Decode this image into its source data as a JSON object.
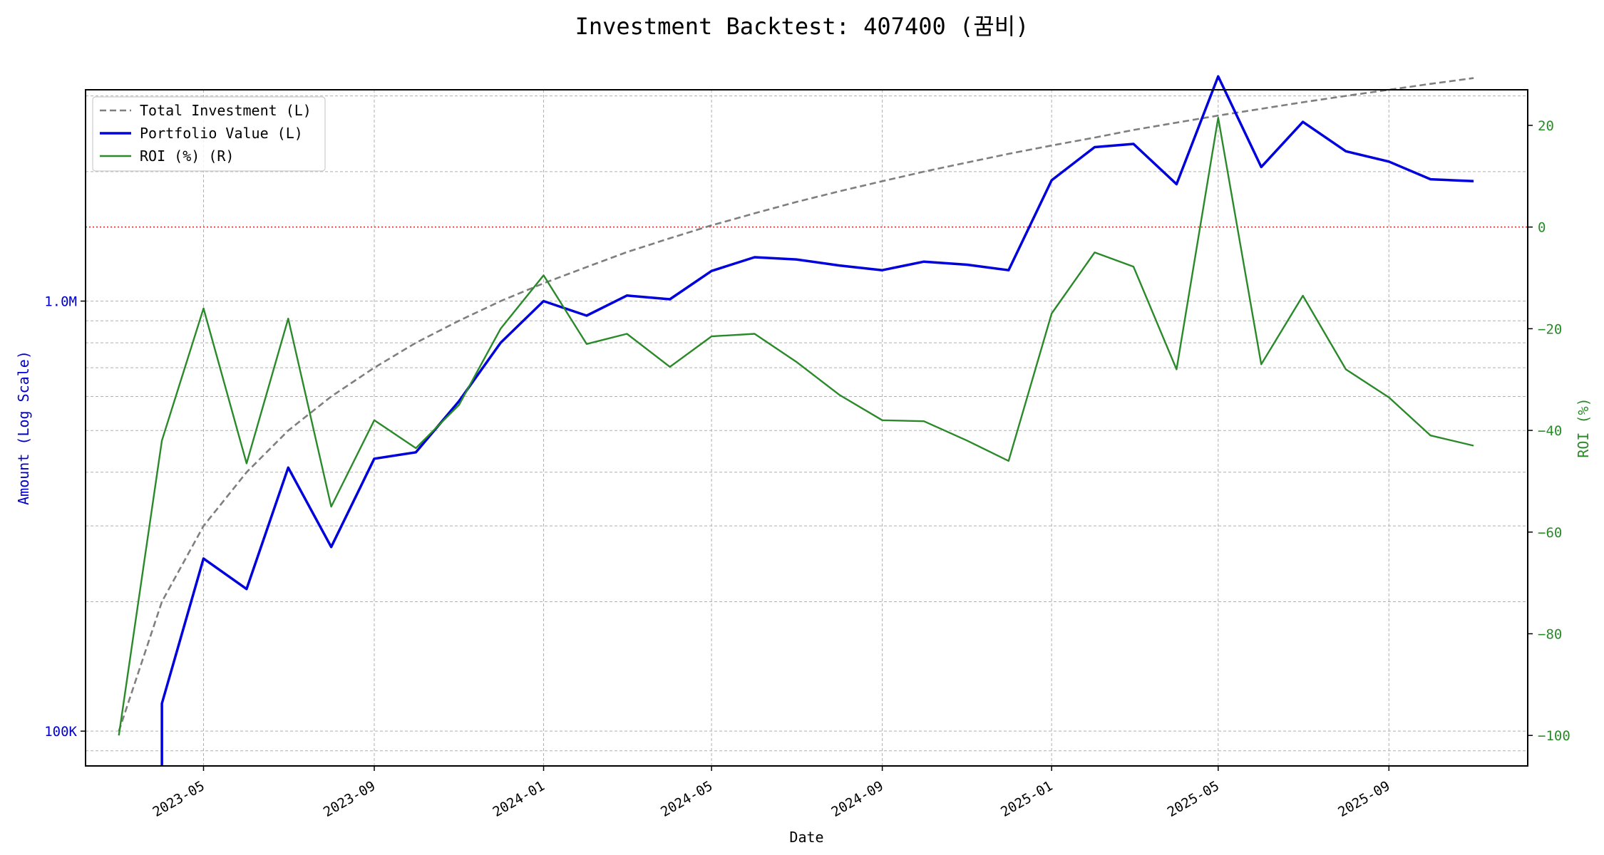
{
  "chart_data": {
    "type": "line",
    "title": "Investment Backtest: 407400 (꿈비)",
    "xlabel": "Date",
    "ylabel_left": "Amount (Log Scale)",
    "ylabel_right": "ROI (%)",
    "left_scale": "log",
    "left_ylim": [
      83000,
      3100000
    ],
    "right_ylim": [
      -106,
      27
    ],
    "left_ticks": [
      {
        "value": 100000,
        "label": "100K"
      },
      {
        "value": 1000000,
        "label": "1.0M"
      }
    ],
    "right_ticks": [
      {
        "value": 20,
        "label": "20"
      },
      {
        "value": 0,
        "label": "0"
      },
      {
        "value": -20,
        "label": "−20"
      },
      {
        "value": -40,
        "label": "−40"
      },
      {
        "value": -60,
        "label": "−60"
      },
      {
        "value": -80,
        "label": "−80"
      },
      {
        "value": -100,
        "label": "−100"
      }
    ],
    "x_ticks": [
      "2023-05",
      "2023-09",
      "2024-01",
      "2024-05",
      "2024-09",
      "2025-01",
      "2025-05",
      "2025-09"
    ],
    "x_range": [
      "2023-02-05",
      "2025-12-10"
    ],
    "grid": true,
    "legend_position": "top-left",
    "reference_line": {
      "axis": "right",
      "value": 0,
      "color": "#d62728",
      "style": "dotted"
    },
    "dates": [
      "2023-03-01",
      "2023-04-01",
      "2023-05-01",
      "2023-06-01",
      "2023-07-01",
      "2023-08-01",
      "2023-09-01",
      "2023-10-01",
      "2023-11-01",
      "2023-12-01",
      "2024-01-01",
      "2024-02-01",
      "2024-03-01",
      "2024-04-01",
      "2024-05-01",
      "2024-06-01",
      "2024-07-01",
      "2024-08-01",
      "2024-09-01",
      "2024-10-01",
      "2024-11-01",
      "2024-12-01",
      "2025-01-01",
      "2025-02-01",
      "2025-03-01",
      "2025-04-01",
      "2025-05-01",
      "2025-06-01",
      "2025-07-01",
      "2025-08-01",
      "2025-09-01",
      "2025-10-01",
      "2025-11-01"
    ],
    "series": [
      {
        "name": "Total Investment (L)",
        "axis": "left",
        "color": "#7f7f7f",
        "style": "dashed",
        "values": [
          100000,
          200000,
          300000,
          400000,
          500000,
          600000,
          700000,
          800000,
          900000,
          1000000,
          1100000,
          1200000,
          1300000,
          1400000,
          1500000,
          1600000,
          1700000,
          1800000,
          1900000,
          2000000,
          2100000,
          2200000,
          2300000,
          2400000,
          2500000,
          2600000,
          2700000,
          2800000,
          2900000,
          3000000,
          3100000,
          3200000,
          3300000
        ]
      },
      {
        "name": "Portfolio Value (L)",
        "axis": "left",
        "color": "#0000dd",
        "style": "solid",
        "values": [
          null,
          116000,
          252000,
          214000,
          410000,
          268000,
          430000,
          445000,
          585000,
          800000,
          1000000,
          925000,
          1030000,
          1010000,
          1175000,
          1265000,
          1250000,
          1210000,
          1180000,
          1235000,
          1215000,
          1180000,
          1910000,
          2280000,
          2320000,
          1870000,
          3330000,
          2050000,
          2610000,
          2230000,
          2110000,
          1920000,
          1900000
        ]
      },
      {
        "name": "ROI (%) (R)",
        "axis": "right",
        "color": "#2a8a2a",
        "style": "solid",
        "values": [
          -100,
          -42,
          -16,
          -46.5,
          -18,
          -55,
          -38,
          -43.5,
          -35,
          -20,
          -9.5,
          -23,
          -21,
          -27.5,
          -21.5,
          -21,
          -26.5,
          -33,
          -38,
          -38.2,
          -42,
          -46,
          -17,
          -5,
          -7.8,
          -28,
          21.5,
          -27,
          -13.5,
          -28,
          -33.5,
          -41,
          -43
        ]
      }
    ]
  }
}
